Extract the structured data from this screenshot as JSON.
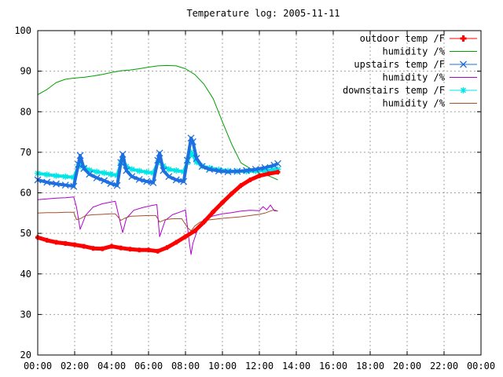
{
  "chart_data": {
    "type": "line",
    "title": "Temperature log: 2005-11-11",
    "xlabel": "",
    "ylabel": "",
    "xlim": [
      "00:00",
      "24:00"
    ],
    "ylim": [
      20,
      100
    ],
    "x_tick_labels": [
      "00:00",
      "02:00",
      "04:00",
      "06:00",
      "08:00",
      "10:00",
      "12:00",
      "14:00",
      "16:00",
      "18:00",
      "20:00",
      "22:00",
      "00:00"
    ],
    "y_tick_labels": [
      "20",
      "30",
      "40",
      "50",
      "60",
      "70",
      "80",
      "90",
      "100"
    ],
    "grid": true,
    "legend_position": "top-right",
    "series": [
      {
        "name": "outdoor temp /F",
        "color": "#ff0000",
        "marker": "plus",
        "x": [
          0.0,
          0.5,
          1.0,
          1.5,
          2.0,
          2.5,
          3.0,
          3.5,
          4.0,
          4.5,
          5.0,
          5.5,
          6.0,
          6.5,
          7.0,
          7.5,
          8.0,
          8.5,
          9.0,
          9.5,
          10.0,
          10.5,
          11.0,
          11.5,
          12.0,
          12.5,
          13.0
        ],
        "y": [
          49,
          48.3,
          47.8,
          47.5,
          47.2,
          46.8,
          46.3,
          46.2,
          46.8,
          46.4,
          46.1,
          45.9,
          45.9,
          45.6,
          46.5,
          47.8,
          49.2,
          50.6,
          52.8,
          55.3,
          57.6,
          59.8,
          61.8,
          63.2,
          64.2,
          64.7,
          65.1
        ]
      },
      {
        "name": "humidity /%",
        "color": "#00a000",
        "marker": "none",
        "x": [
          0.0,
          0.5,
          1.0,
          1.5,
          2.0,
          2.5,
          3.0,
          3.5,
          4.0,
          4.5,
          5.0,
          5.5,
          6.0,
          6.5,
          7.0,
          7.5,
          8.0,
          8.5,
          9.0,
          9.5,
          10.0,
          10.5,
          11.0,
          11.5,
          12.0,
          12.5,
          13.0
        ],
        "y": [
          84.2,
          85.5,
          87.2,
          88,
          88.3,
          88.5,
          88.8,
          89.2,
          89.7,
          90.1,
          90.3,
          90.6,
          91,
          91.3,
          91.4,
          91.3,
          90.6,
          89.2,
          86.8,
          83.2,
          77.5,
          72,
          67.4,
          66,
          64.8,
          64.2,
          63.2
        ]
      },
      {
        "name": "upstairs temp /F",
        "color": "#1e6fe0",
        "marker": "x",
        "x": [
          0.0,
          0.5,
          1.0,
          1.5,
          1.95,
          2.2,
          2.3,
          2.5,
          2.8,
          3.2,
          3.6,
          3.95,
          4.3,
          4.5,
          4.6,
          4.8,
          5.1,
          5.5,
          5.9,
          6.25,
          6.5,
          6.6,
          6.8,
          7.1,
          7.5,
          7.9,
          8.1,
          8.3,
          8.4,
          8.6,
          8.9,
          9.3,
          9.8,
          10.3,
          10.8,
          11.3,
          11.8,
          12.3,
          12.8,
          13.0
        ],
        "y": [
          63.2,
          62.6,
          62.2,
          61.9,
          61.6,
          67,
          69.2,
          66,
          64.6,
          63.7,
          63,
          62.3,
          61.8,
          67.5,
          69.5,
          65.5,
          64,
          63.3,
          62.8,
          62.5,
          68,
          69.8,
          65.5,
          64,
          63.2,
          62.8,
          68,
          73.5,
          72.6,
          68.5,
          66.5,
          65.8,
          65.4,
          65.2,
          65.3,
          65.5,
          65.8,
          66.2,
          66.8,
          67.2
        ]
      },
      {
        "name": "humidity /%",
        "color": "#b000d0",
        "marker": "none",
        "x": [
          0.0,
          0.5,
          1.0,
          1.5,
          1.95,
          2.1,
          2.3,
          2.6,
          3.0,
          3.5,
          3.95,
          4.2,
          4.6,
          4.8,
          5.2,
          5.7,
          6.2,
          6.45,
          6.6,
          6.9,
          7.3,
          7.8,
          8.0,
          8.2,
          8.3,
          8.4,
          8.7,
          9.0,
          9.5,
          10.0,
          10.5,
          11.0,
          11.5,
          12.0,
          12.2,
          12.4,
          12.6,
          12.8,
          13.0
        ],
        "y": [
          58.3,
          58.5,
          58.7,
          58.8,
          59,
          56.5,
          51,
          54.5,
          56.5,
          57.3,
          57.7,
          57.9,
          50.2,
          53.7,
          55.7,
          56.4,
          56.9,
          57.1,
          49.2,
          53.2,
          54.6,
          55.4,
          55.8,
          48,
          44.8,
          47.5,
          51.5,
          53.5,
          54.3,
          54.8,
          55.1,
          55.5,
          55.7,
          55.6,
          56.6,
          55.8,
          57,
          55.6,
          55.5
        ]
      },
      {
        "name": "downstairs temp /F",
        "color": "#00e5e5",
        "marker": "star",
        "x": [
          0.0,
          0.5,
          1.0,
          1.5,
          1.95,
          2.2,
          2.3,
          2.5,
          2.8,
          3.2,
          3.6,
          3.95,
          4.3,
          4.5,
          4.6,
          4.8,
          5.1,
          5.5,
          5.9,
          6.25,
          6.5,
          6.6,
          6.8,
          7.1,
          7.5,
          7.9,
          8.1,
          8.3,
          8.4,
          8.6,
          8.9,
          9.3,
          9.8,
          10.3,
          10.8,
          11.3,
          11.8,
          12.3,
          12.8,
          13.0
        ],
        "y": [
          64.8,
          64.5,
          64.2,
          64,
          63.8,
          66.5,
          67.5,
          66.2,
          65.6,
          65.2,
          64.9,
          64.6,
          64.3,
          67.3,
          68.2,
          66.5,
          65.8,
          65.4,
          65.1,
          64.9,
          67.4,
          68.2,
          66.6,
          65.8,
          65.5,
          65.2,
          67.5,
          70,
          69.3,
          67.6,
          66.6,
          66.1,
          65.7,
          65.4,
          65.3,
          65.3,
          65.4,
          65.5,
          65.7,
          65.8
        ]
      },
      {
        "name": "humidity /%",
        "color": "#a0522d",
        "marker": "none",
        "x": [
          0.0,
          0.5,
          1.0,
          1.5,
          1.95,
          2.1,
          2.3,
          2.6,
          3.0,
          3.5,
          3.95,
          4.2,
          4.5,
          4.7,
          5.0,
          5.5,
          6.0,
          6.4,
          6.6,
          6.9,
          7.3,
          7.8,
          8.1,
          8.3,
          8.5,
          8.8,
          9.2,
          9.6,
          10.0,
          10.5,
          11.0,
          11.5,
          12.0,
          12.3,
          12.6,
          12.8,
          13.0
        ],
        "y": [
          55,
          55.1,
          55.1,
          55.2,
          55.2,
          53.4,
          53.6,
          54.4,
          54.6,
          54.7,
          54.8,
          54.8,
          53.2,
          53.7,
          54.2,
          54.3,
          54.4,
          54.4,
          52.8,
          53.4,
          53.6,
          53.6,
          51.5,
          50.6,
          51.8,
          52.8,
          53.3,
          53.5,
          53.7,
          53.9,
          54.1,
          54.4,
          54.7,
          55,
          55.5,
          55.8,
          55.5
        ]
      }
    ]
  }
}
